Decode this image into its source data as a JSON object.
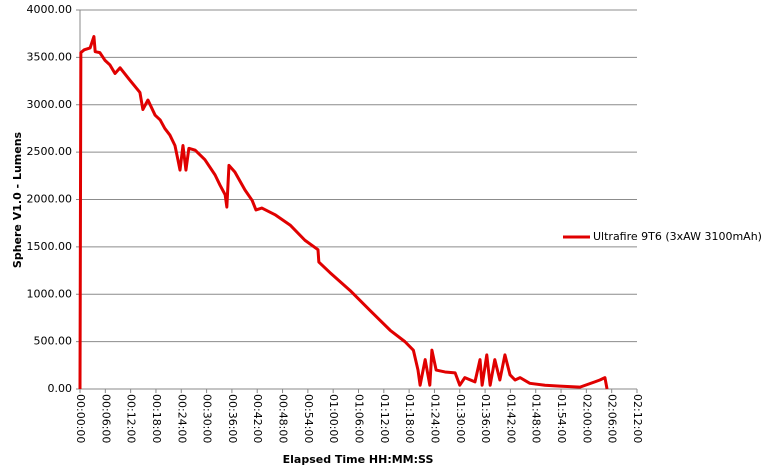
{
  "chart_data": {
    "type": "line",
    "x_label": "Elapsed Time HH:MM:SS",
    "y_label": "Sphere V1.0 - Lumens",
    "xlim": [
      0,
      132
    ],
    "xticks": [
      {
        "value": 0,
        "label": "00:00:00"
      },
      {
        "value": 6,
        "label": "00:06:00"
      },
      {
        "value": 12,
        "label": "00:12:00"
      },
      {
        "value": 18,
        "label": "00:18:00"
      },
      {
        "value": 24,
        "label": "00:24:00"
      },
      {
        "value": 30,
        "label": "00:30:00"
      },
      {
        "value": 36,
        "label": "00:36:00"
      },
      {
        "value": 42,
        "label": "00:42:00"
      },
      {
        "value": 48,
        "label": "00:48:00"
      },
      {
        "value": 54,
        "label": "00:54:00"
      },
      {
        "value": 60,
        "label": "01:00:00"
      },
      {
        "value": 66,
        "label": "01:06:00"
      },
      {
        "value": 72,
        "label": "01:12:00"
      },
      {
        "value": 78,
        "label": "01:18:00"
      },
      {
        "value": 84,
        "label": "01:24:00"
      },
      {
        "value": 90,
        "label": "01:30:00"
      },
      {
        "value": 96,
        "label": "01:36:00"
      },
      {
        "value": 102,
        "label": "01:42:00"
      },
      {
        "value": 108,
        "label": "01:48:00"
      },
      {
        "value": 114,
        "label": "01:54:00"
      },
      {
        "value": 120,
        "label": "02:00:00"
      },
      {
        "value": 126,
        "label": "02:06:00"
      },
      {
        "value": 132,
        "label": "02:12:00"
      }
    ],
    "ylim": [
      0,
      4000
    ],
    "yticks": [
      {
        "value": 0,
        "label": "0.00"
      },
      {
        "value": 500,
        "label": "500.00"
      },
      {
        "value": 1000,
        "label": "1000.00"
      },
      {
        "value": 1500,
        "label": "1500.00"
      },
      {
        "value": 2000,
        "label": "2000.00"
      },
      {
        "value": 2500,
        "label": "2500.00"
      },
      {
        "value": 3000,
        "label": "3000.00"
      },
      {
        "value": 3500,
        "label": "3500.00"
      },
      {
        "value": 4000,
        "label": "4000.00"
      }
    ],
    "grid": true,
    "legend": "right",
    "x": [
      0,
      0.2,
      1,
      2.4,
      3.3,
      3.6,
      4.7,
      5.9,
      7.1,
      8.3,
      9.5,
      11.8,
      14.2,
      14.9,
      16.1,
      17.8,
      19,
      20.1,
      21.3,
      22.5,
      23.2,
      23.7,
      24.4,
      25.1,
      25.8,
      27.3,
      29.6,
      32,
      33.2,
      34.4,
      34.8,
      35.3,
      36.7,
      39.1,
      40.8,
      41.7,
      43.1,
      46.2,
      49.8,
      53.3,
      56.4,
      56.6,
      59.2,
      64,
      68.7,
      73.5,
      77,
      79,
      80.1,
      80.6,
      81.8,
      82.9,
      83.4,
      84.4,
      86.5,
      88.9,
      90,
      91.2,
      93.6,
      94.8,
      95.3,
      96.4,
      97.2,
      98.3,
      99.5,
      100.7,
      101.9,
      103.1,
      104.3,
      106.6,
      110.2,
      113.7,
      118.5,
      122,
      123.2,
      124.4,
      124.9
    ],
    "series": [
      {
        "name": "Ultrafire 9T6 (3xAW 3100mAh)",
        "color": "#e00000",
        "values": [
          0,
          3550,
          3580,
          3600,
          3720,
          3560,
          3550,
          3470,
          3420,
          3330,
          3390,
          3260,
          3130,
          2950,
          3050,
          2890,
          2840,
          2750,
          2680,
          2570,
          2420,
          2310,
          2570,
          2310,
          2540,
          2520,
          2420,
          2260,
          2150,
          2050,
          1920,
          2360,
          2290,
          2100,
          1990,
          1890,
          1910,
          1840,
          1730,
          1570,
          1470,
          1340,
          1230,
          1040,
          830,
          620,
          500,
          410,
          200,
          40,
          310,
          40,
          410,
          200,
          180,
          170,
          40,
          120,
          75,
          310,
          40,
          360,
          40,
          310,
          95,
          360,
          150,
          95,
          120,
          60,
          40,
          30,
          20,
          75,
          95,
          120,
          0
        ]
      }
    ]
  }
}
